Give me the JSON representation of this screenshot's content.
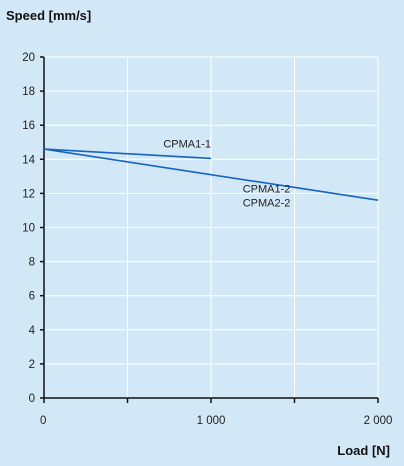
{
  "chart_data": {
    "type": "line",
    "title": "",
    "ylabel": "Speed [mm/s]",
    "xlabel": "Load [N]",
    "xlim": [
      0,
      2000
    ],
    "ylim": [
      0,
      20
    ],
    "x_ticks": [
      0,
      1000,
      2000
    ],
    "x_tick_labels": [
      "0",
      "1 000",
      "2 000"
    ],
    "x_minor_ticks": [
      500,
      1500
    ],
    "y_ticks": [
      0,
      2,
      4,
      6,
      8,
      10,
      12,
      14,
      16,
      18,
      20
    ],
    "y_tick_labels": [
      "0",
      "2",
      "4",
      "6",
      "8",
      "10",
      "12",
      "14",
      "16",
      "18",
      "20"
    ],
    "grid": true,
    "colors": {
      "line": "#1565c0",
      "grid": "#ffffff",
      "background": "#d3e8f7",
      "axis": "#111111"
    },
    "series": [
      {
        "x": [
          0,
          1000
        ],
        "y": [
          14.6,
          14.05
        ]
      },
      {
        "x": [
          0,
          2000
        ],
        "y": [
          14.6,
          11.6
        ]
      }
    ],
    "annotations": [
      {
        "lines": [
          "CPMA1-1"
        ],
        "x": 1000,
        "y": 14.7
      },
      {
        "lines": [
          "CPMA1-2",
          "CPMA2-2"
        ],
        "x": 1190,
        "y": 12.05
      }
    ]
  }
}
